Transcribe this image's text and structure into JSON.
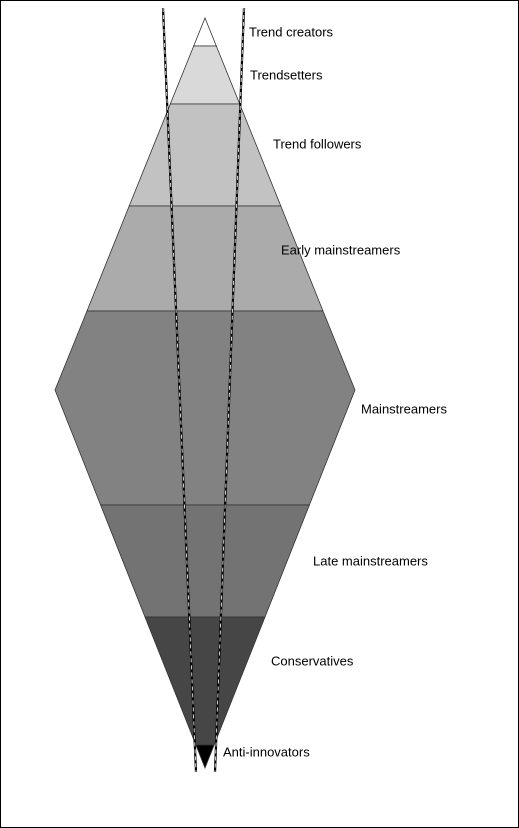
{
  "labels": [
    "Trend creators",
    "Trendsetters",
    "Trend followers",
    "Early mainstreamers",
    "Mainstreamers",
    "Late mainstreamers",
    "Conservatives",
    "Anti-innovators"
  ]
}
